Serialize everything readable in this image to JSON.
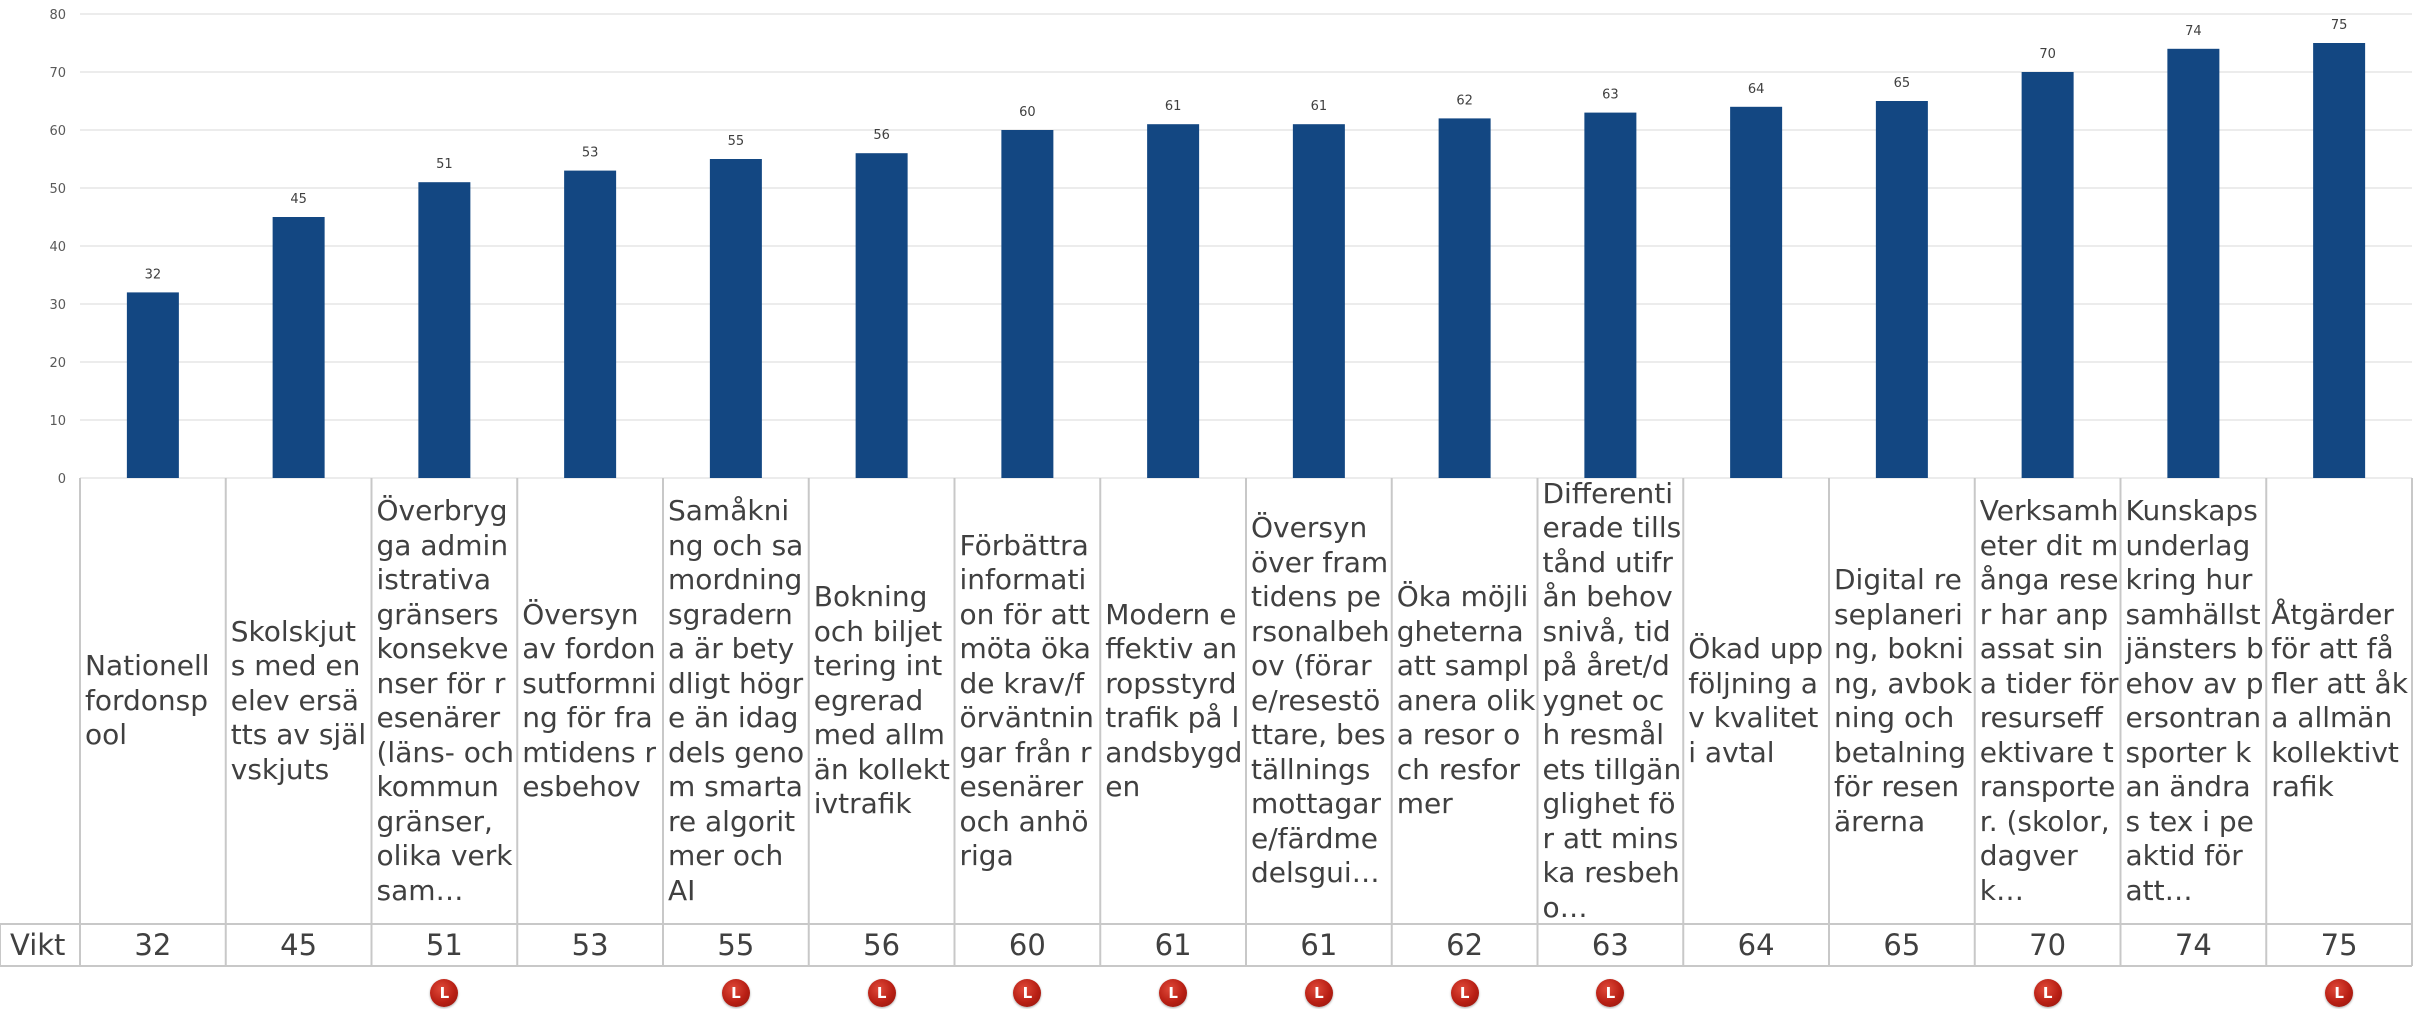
{
  "chart_data": {
    "type": "bar",
    "categories": [
      "Nationell fordonspool",
      "Skolskjuts med en elev ersätts av självskjuts",
      "Överbrygga administrativa gränsers konsekvenser för resenärer (läns- och kommungränser, olika verksam…",
      "Översyn av fordonsutformning för framtidens resbehov",
      "Samåkning och samordningsgraderna är betydligt högre än idag dels genom smartare algoritmer och AI",
      "Bokning och biljettering integrerad med allmän kollektivtrafik",
      "Förbättra information för att möta ökade krav/förväntningar från resenärer och anhöriga",
      "Modern effektiv anropsstyrd trafik på landsbygden",
      "Översyn över framtidens personalbehov (förare/resestöttare, beställningsmottagare/färdmedelsgui…",
      "Öka möjligheterna att samplanera olika resor och resformer",
      "Differentierade tillstånd utifrån behovsnivå, tid på året/dygnet och resmålets tillgänglighet för att minska resbeho…",
      "Ökad uppföljning av kvalitet i avtal",
      "Digital reseplanering, bokning, avbokning och betalning för resenärerna",
      "Verksamheter dit många reser har anpassat sina tider för resurseffektivare transporter. (skolor, dagverk…",
      "Kunskapsunderlag kring hur samhällstjänsters behov av persontransporter kan ändras tex i peaktid för att…",
      "Åtgärder för att få fler att åka allmän kollektivtrafik"
    ],
    "values": [
      32,
      45,
      51,
      53,
      55,
      56,
      60,
      61,
      61,
      62,
      63,
      64,
      65,
      70,
      74,
      75
    ],
    "series": [
      {
        "name": "Vikt",
        "values": [
          32,
          45,
          51,
          53,
          55,
          56,
          60,
          61,
          61,
          62,
          63,
          64,
          65,
          70,
          74,
          75
        ]
      }
    ],
    "ylim": [
      0,
      80
    ],
    "yticks": [
      0,
      10,
      20,
      30,
      40,
      50,
      60,
      70,
      80
    ],
    "grid": true,
    "data_table": true,
    "bar_color": "#134782",
    "markers": [
      false,
      false,
      true,
      false,
      true,
      true,
      true,
      true,
      true,
      true,
      true,
      false,
      false,
      true,
      false,
      true
    ],
    "marker_label": "L",
    "marker_color": "#b81f14"
  },
  "table": {
    "row_label": "Vikt"
  }
}
